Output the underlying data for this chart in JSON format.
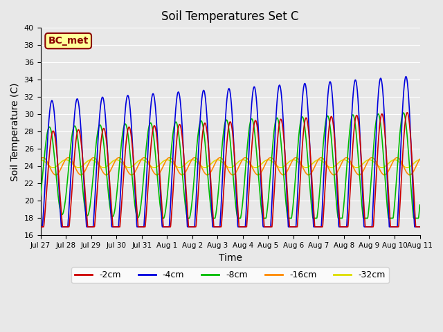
{
  "title": "Soil Temperatures Set C",
  "xlabel": "Time",
  "ylabel": "Soil Temperature (C)",
  "ylim": [
    16,
    40
  ],
  "yticks": [
    16,
    18,
    20,
    22,
    24,
    26,
    28,
    30,
    32,
    34,
    36,
    38,
    40
  ],
  "bg_color": "#e8e8e8",
  "plot_bg_color": "#e8e8e8",
  "colors": {
    "-2cm": "#cc0000",
    "-4cm": "#0000dd",
    "-8cm": "#00bb00",
    "-16cm": "#ff8800",
    "-32cm": "#dddd00"
  },
  "label_box": {
    "text": "BC_met",
    "facecolor": "#ffff99",
    "edgecolor": "#8b0000",
    "textcolor": "#8b0000"
  },
  "x_tick_labels": [
    "Jul 27",
    "Jul 28",
    "Jul 29",
    "Jul 30",
    "Jul 31",
    "Aug 1",
    "Aug 2",
    "Aug 3",
    "Aug 4",
    "Aug 5",
    "Aug 6",
    "Aug 7",
    "Aug 8",
    "Aug 9",
    "Aug 10",
    "Aug 11"
  ],
  "depths": [
    "-2cm",
    "-4cm",
    "-8cm",
    "-16cm",
    "-32cm"
  ],
  "linewidth": 1.2
}
